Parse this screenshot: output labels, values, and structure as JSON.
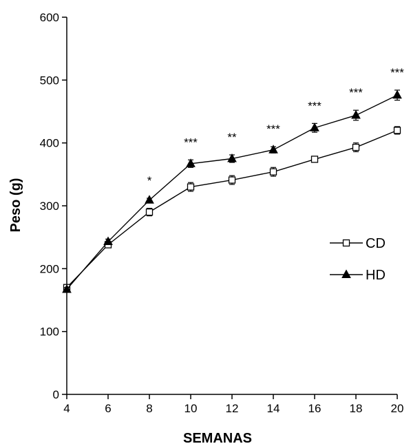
{
  "chart_data": {
    "type": "line",
    "title": "",
    "xlabel": "SEMANAS",
    "ylabel": "Peso (g)",
    "xlim": [
      4,
      20
    ],
    "ylim": [
      0,
      600
    ],
    "x_ticks": [
      4,
      6,
      8,
      10,
      12,
      14,
      16,
      18,
      20
    ],
    "y_ticks": [
      0,
      100,
      200,
      300,
      400,
      500,
      600
    ],
    "grid": false,
    "legend_position": "right",
    "series": [
      {
        "name": "CD",
        "marker": "open-square",
        "color": "#000000",
        "x": [
          4,
          6,
          8,
          10,
          12,
          14,
          16,
          18,
          20
        ],
        "y": [
          170,
          238,
          290,
          330,
          341,
          354,
          374,
          393,
          420
        ],
        "error": [
          3,
          4,
          6,
          7,
          7,
          7,
          4,
          7,
          6
        ]
      },
      {
        "name": "HD",
        "marker": "filled-triangle",
        "color": "#000000",
        "x": [
          4,
          6,
          8,
          10,
          12,
          14,
          16,
          18,
          20
        ],
        "y": [
          167,
          243,
          309,
          367,
          375,
          389,
          424,
          444,
          476
        ],
        "error": [
          3,
          4,
          3,
          6,
          6,
          5,
          7,
          8,
          8
        ]
      }
    ],
    "annotations": [
      {
        "x": 8,
        "text": "*"
      },
      {
        "x": 10,
        "text": "***"
      },
      {
        "x": 12,
        "text": "**"
      },
      {
        "x": 14,
        "text": "***"
      },
      {
        "x": 16,
        "text": "***"
      },
      {
        "x": 18,
        "text": "***"
      },
      {
        "x": 20,
        "text": "***"
      }
    ]
  }
}
